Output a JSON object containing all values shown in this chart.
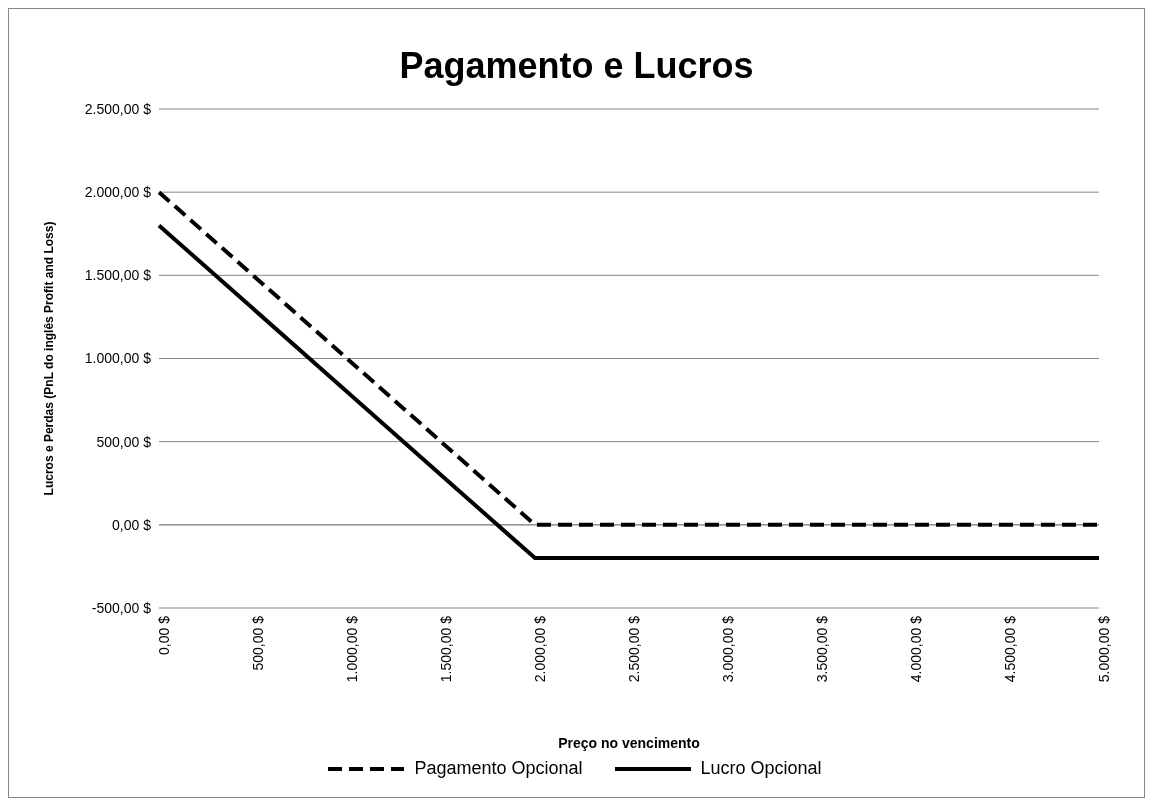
{
  "chart_data": {
    "type": "line",
    "title": "Pagamento e Lucros",
    "xlabel": "Preço no vencimento",
    "ylabel": "Lucros e Perdas (PnL do inglês Profit and Loss)",
    "categories": [
      "0,00 $",
      "500,00 $",
      "1.000,00 $",
      "1.500,00 $",
      "2.000,00 $",
      "2.500,00 $",
      "3.000,00 $",
      "3.500,00 $",
      "4.000,00 $",
      "4.500,00 $",
      "5.000,00 $"
    ],
    "series": [
      {
        "name": "Pagamento Opcional",
        "color": "#000000",
        "line_style": "dashed",
        "values": [
          2000,
          1500,
          1000,
          500,
          0,
          0,
          0,
          0,
          0,
          0,
          0
        ]
      },
      {
        "name": "Lucro Opcional",
        "color": "#000000",
        "line_style": "solid",
        "values": [
          1800,
          1300,
          800,
          300,
          -200,
          -200,
          -200,
          -200,
          -200,
          -200,
          -200
        ]
      }
    ],
    "ylim": [
      -500,
      2500
    ],
    "yticks": [
      {
        "value": -500,
        "label": "-500,00 $"
      },
      {
        "value": 0,
        "label": "0,00 $"
      },
      {
        "value": 500,
        "label": "500,00 $"
      },
      {
        "value": 1000,
        "label": "1.000,00 $"
      },
      {
        "value": 1500,
        "label": "1.500,00 $"
      },
      {
        "value": 2000,
        "label": "2.000,00 $"
      },
      {
        "value": 2500,
        "label": "2.500,00 $"
      }
    ],
    "grid": "y",
    "legend": "bottom",
    "marker": "none"
  }
}
